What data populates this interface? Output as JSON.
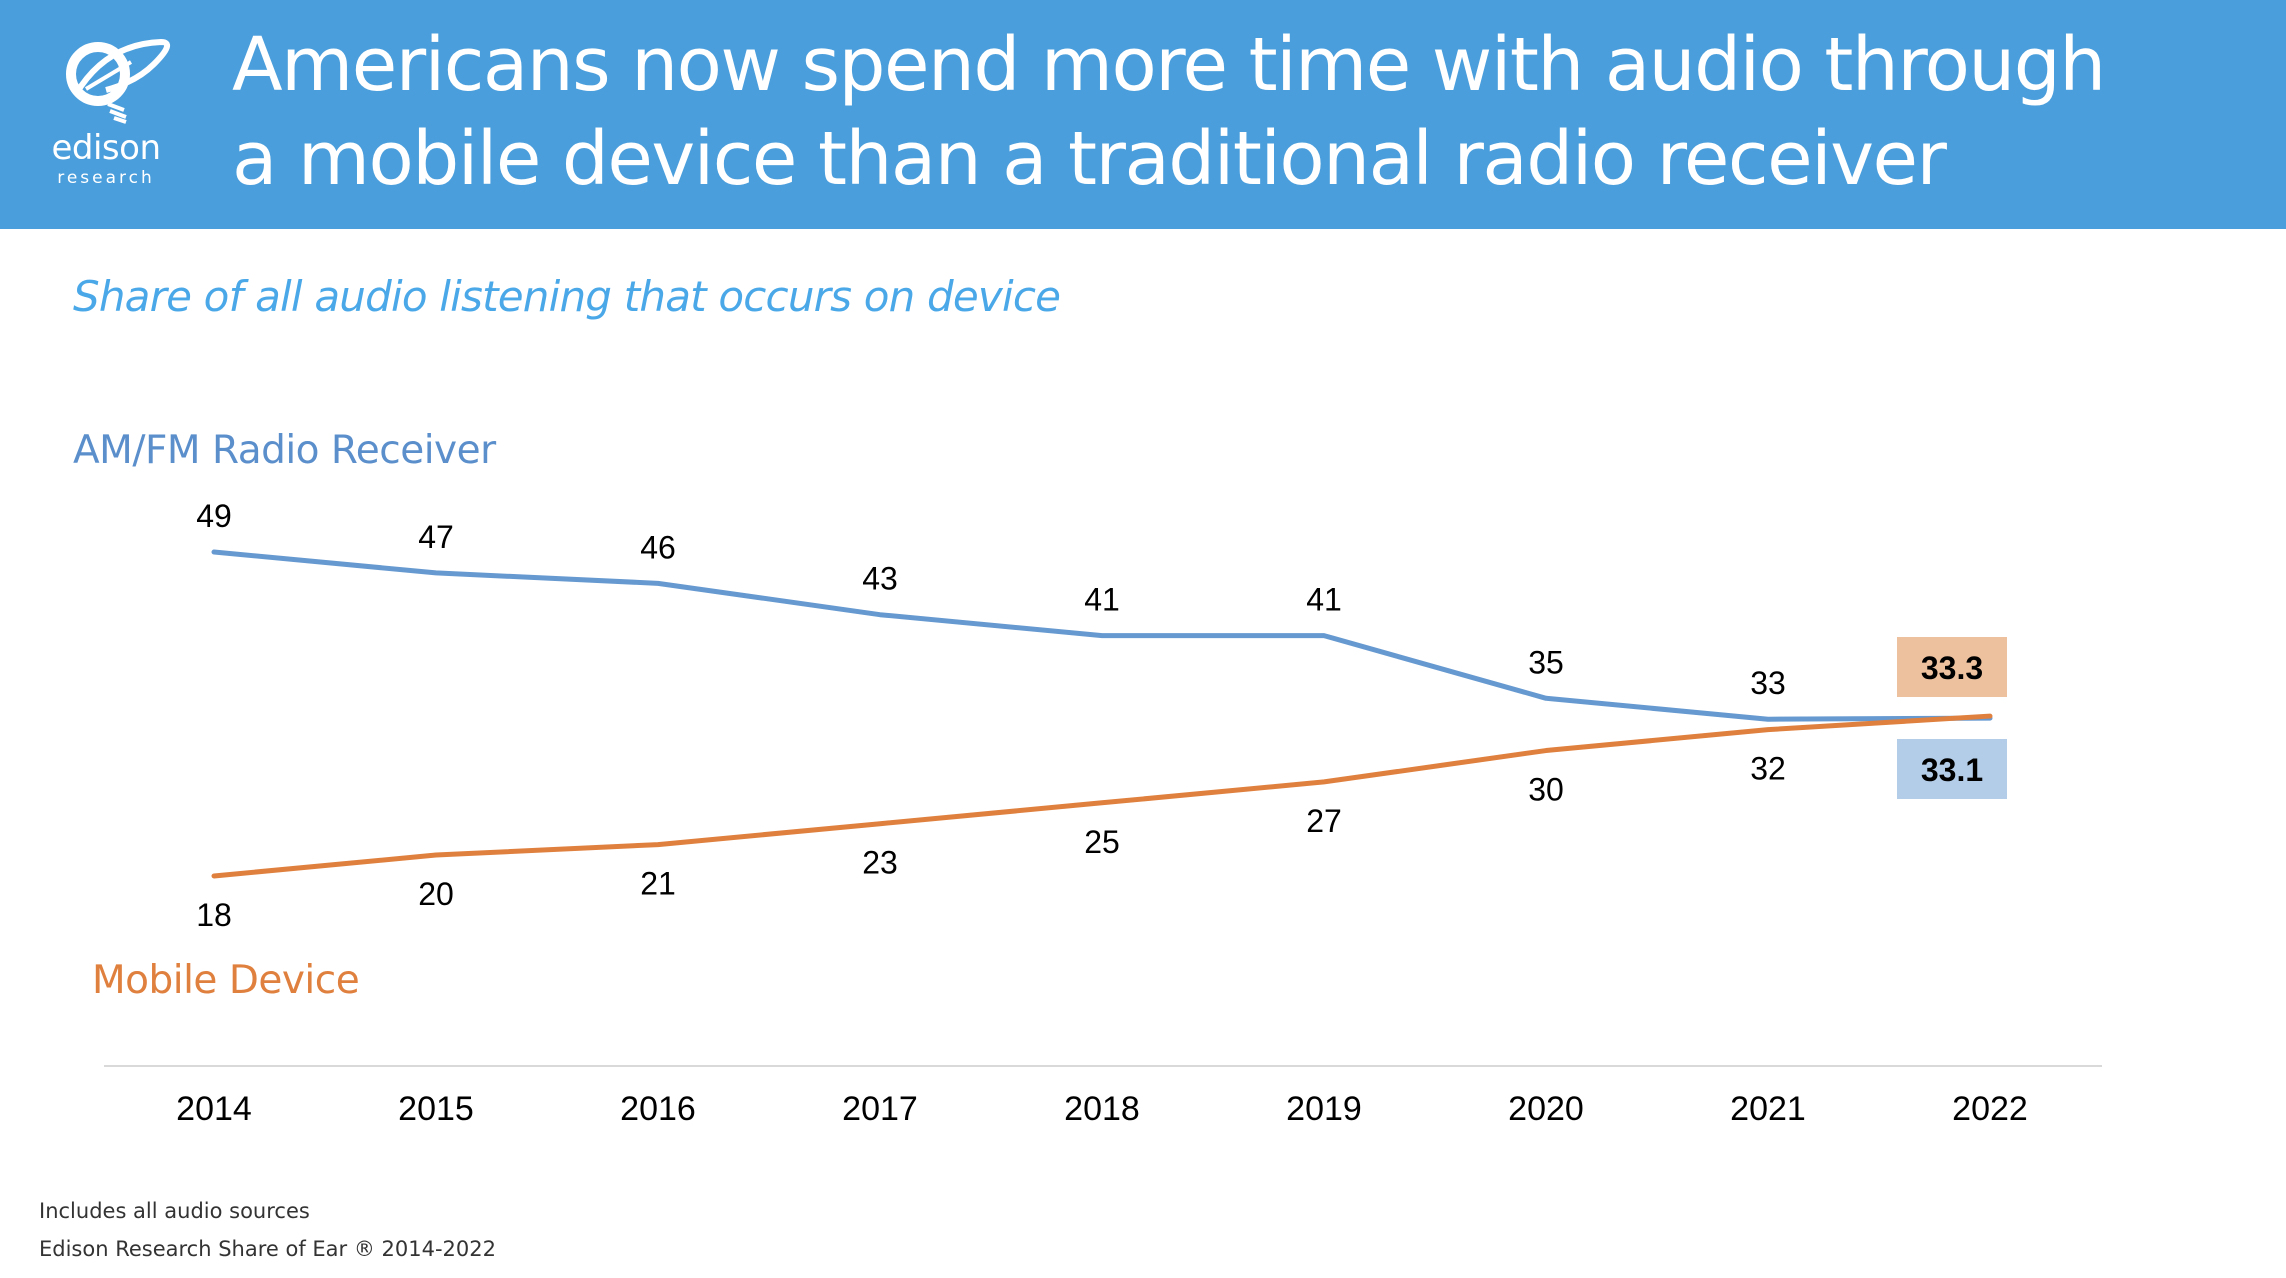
{
  "header": {
    "title_line1": "Americans now spend more time with audio through",
    "title_line2": "a mobile device than a traditional radio receiver",
    "logo": {
      "icon": "lightbulb-orbit-logo-icon",
      "word": "edison",
      "subword": "research"
    },
    "background_color": "#4a9edc"
  },
  "subtitle": "Share of all audio listening that occurs on device",
  "footer": {
    "note": "Includes all audio sources",
    "source": "Edison Research Share of Ear ® 2014-2022"
  },
  "chart_data": {
    "type": "line",
    "title": "Share of all audio listening that occurs on device",
    "xlabel": "",
    "ylabel": "",
    "x": [
      "2014",
      "2015",
      "2016",
      "2017",
      "2018",
      "2019",
      "2020",
      "2021",
      "2022"
    ],
    "grid": false,
    "ylim": [
      18,
      49
    ],
    "series": [
      {
        "name": "AM/FM Radio Receiver",
        "color": "#6699d0",
        "values": [
          49,
          47,
          46,
          43,
          41,
          41,
          35,
          33,
          33.1
        ],
        "labels": [
          "49",
          "47",
          "46",
          "43",
          "41",
          "41",
          "35",
          "33",
          "33.1"
        ],
        "final_label_box_color": "#b3cde8"
      },
      {
        "name": "Mobile Device",
        "color": "#e0803e",
        "values": [
          18,
          20,
          21,
          23,
          25,
          27,
          30,
          32,
          33.3
        ],
        "labels": [
          "18",
          "20",
          "21",
          "23",
          "25",
          "27",
          "30",
          "32",
          "33.3"
        ],
        "final_label_box_color": "#eec19e"
      }
    ]
  }
}
